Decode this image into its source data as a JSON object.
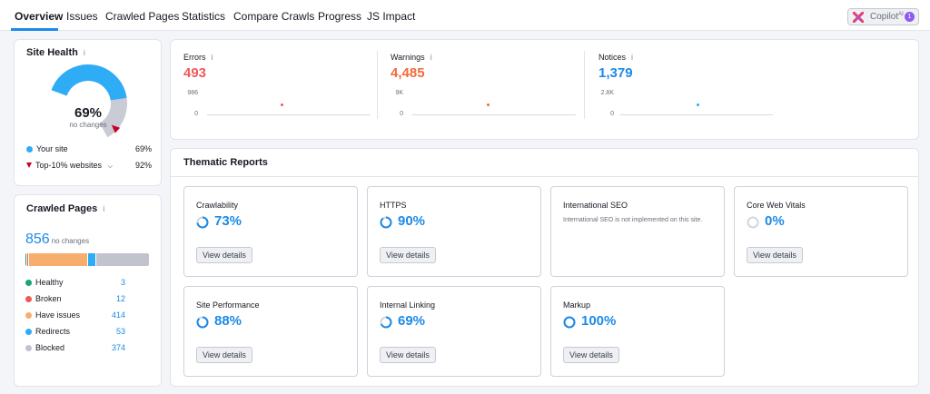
{
  "nav": {
    "tabs": [
      "Overview",
      "Issues",
      "Crawled Pages",
      "Statistics",
      "Compare Crawls",
      "Progress",
      "JS Impact"
    ],
    "active_tab": "Overview",
    "copilot_label": "Copilot",
    "copilot_sup": "AI",
    "copilot_badge": "1"
  },
  "site_health": {
    "title": "Site Health",
    "info": "i",
    "percent": "69%",
    "percent_value": 69,
    "top10_value": 92,
    "change": "no changes",
    "legend": [
      {
        "label": "Your site",
        "value": "69%",
        "color": "#2eacf5"
      },
      {
        "label": "Top-10% websites",
        "value": "92%",
        "color": "#c5002b"
      }
    ]
  },
  "crawled_pages": {
    "title": "Crawled Pages",
    "info": "i",
    "total": "856",
    "change": "no changes",
    "items": [
      {
        "label": "Healthy",
        "value": "3",
        "count": 3,
        "color": "#15a872"
      },
      {
        "label": "Broken",
        "value": "12",
        "count": 12,
        "color": "#ee5a5a"
      },
      {
        "label": "Have issues",
        "value": "414",
        "count": 414,
        "color": "#f7ad6b"
      },
      {
        "label": "Redirects",
        "value": "53",
        "count": 53,
        "color": "#2eacf5"
      },
      {
        "label": "Blocked",
        "value": "374",
        "count": 374,
        "color": "#c1c4cd"
      }
    ]
  },
  "metrics": [
    {
      "label": "Errors",
      "value": "493",
      "color": "#ee5a5a",
      "axis_top": "986",
      "axis_bottom": "0"
    },
    {
      "label": "Warnings",
      "value": "4,485",
      "color": "#f26a3d",
      "axis_top": "9K",
      "axis_bottom": "0"
    },
    {
      "label": "Notices",
      "value": "1,379",
      "color": "#1c8ae8",
      "axis_top": "2.8K",
      "axis_bottom": "0"
    }
  ],
  "thematic": {
    "title": "Thematic Reports",
    "view_label": "View details",
    "reports": [
      {
        "name": "Crawlability",
        "percent": "73%",
        "value": 73
      },
      {
        "name": "HTTPS",
        "percent": "90%",
        "value": 90
      },
      {
        "name": "International SEO",
        "note": "International SEO is not implemented on this site."
      },
      {
        "name": "Core Web Vitals",
        "percent": "0%",
        "value": 0
      },
      {
        "name": "Site Performance",
        "percent": "88%",
        "value": 88
      },
      {
        "name": "Internal Linking",
        "percent": "69%",
        "value": 69
      },
      {
        "name": "Markup",
        "percent": "100%",
        "value": 100
      }
    ]
  }
}
